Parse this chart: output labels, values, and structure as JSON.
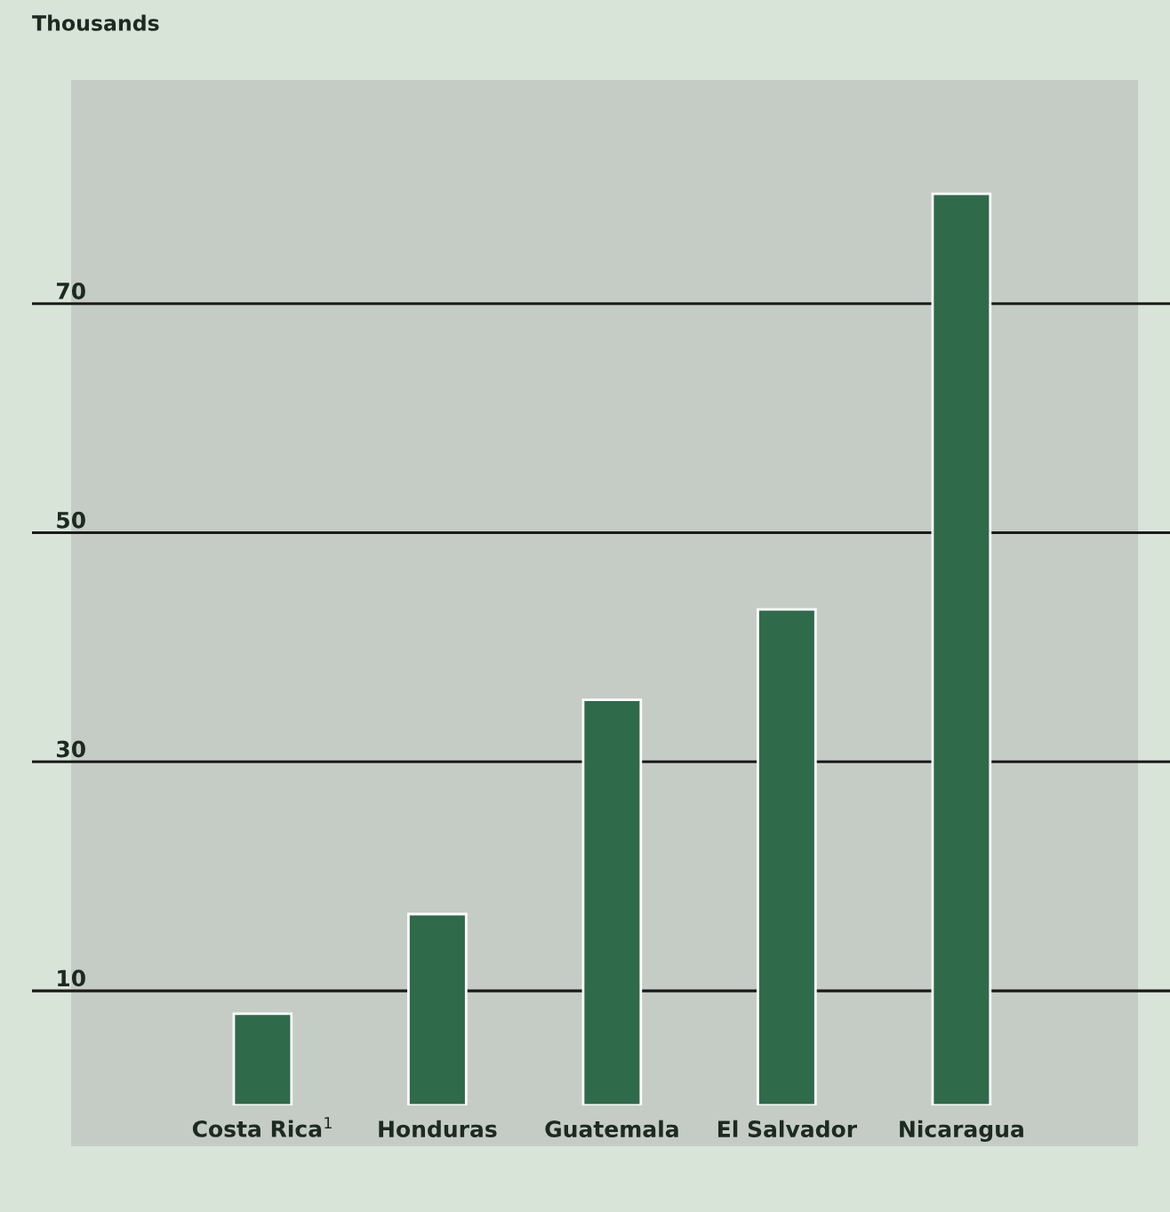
{
  "chart_data": {
    "type": "bar",
    "ylabel": "Thousands",
    "categories": [
      "Costa Rica$^{1}$",
      "Honduras",
      "Guatemala",
      "El Salvador",
      "Nicaragua"
    ],
    "values": [
      8.0,
      16.7,
      35.4,
      43.3,
      79.6
    ],
    "color": "#2f6a4a",
    "ylim": [
      0,
      90
    ],
    "yticks": [
      10,
      30,
      50,
      70
    ],
    "grid": "y"
  }
}
